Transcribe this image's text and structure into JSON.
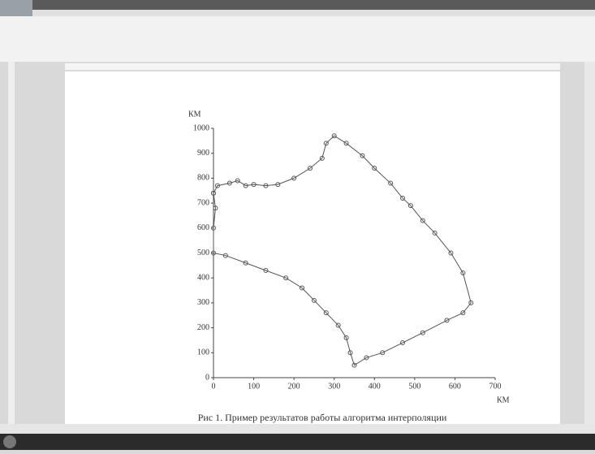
{
  "chart_data": {
    "type": "line",
    "x_label": "КМ",
    "y_label": "КМ",
    "x": [
      0,
      10,
      40,
      60,
      80,
      100,
      130,
      160,
      200,
      240,
      270,
      280,
      300,
      330,
      370,
      400,
      440,
      470,
      490,
      520,
      550,
      590,
      620,
      640,
      620,
      580,
      520,
      470,
      420,
      380,
      350,
      340,
      330,
      310,
      280,
      250,
      220,
      180,
      130,
      80,
      30,
      0,
      0,
      5,
      0
    ],
    "series": [
      {
        "color": "#555555",
        "values": [
          740,
          770,
          780,
          790,
          770,
          775,
          770,
          775,
          800,
          840,
          880,
          940,
          970,
          940,
          890,
          840,
          780,
          720,
          690,
          630,
          580,
          500,
          420,
          300,
          260,
          230,
          180,
          140,
          100,
          80,
          50,
          100,
          160,
          210,
          260,
          310,
          360,
          400,
          430,
          460,
          490,
          500,
          600,
          680,
          740
        ]
      }
    ],
    "markers": true,
    "xlim": [
      0,
      700
    ],
    "ylim": [
      0,
      1000
    ],
    "xticks": [
      0,
      100,
      200,
      300,
      400,
      500,
      600,
      700
    ],
    "yticks": [
      0,
      100,
      200,
      300,
      400,
      500,
      600,
      700,
      800,
      900,
      1000
    ]
  },
  "caption": "Рис 1. Пример результатов работы алгоритма интерполяции"
}
